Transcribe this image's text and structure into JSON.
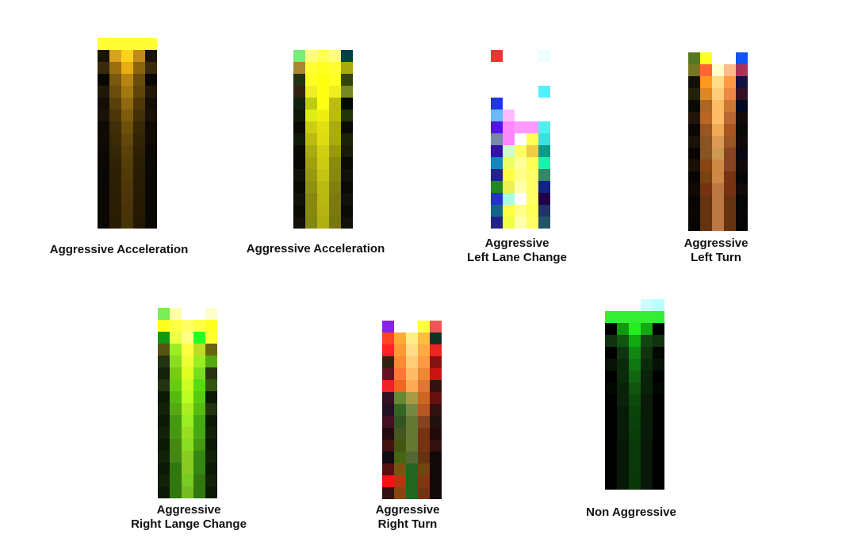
{
  "panels": [
    {
      "id": "aggressive-acceleration-1",
      "caption": [
        "Aggressive Acceleration"
      ],
      "grid": [
        [
          "#ffff33",
          "#ffff33",
          "#ffff33",
          "#ffff33",
          "#ffff33"
        ],
        [
          "#1a1408",
          "#d9a31f",
          "#ffd21a",
          "#c08a1c",
          "#1a1408"
        ],
        [
          "#3a2a0c",
          "#9a6f10",
          "#e8ad10",
          "#8a640e",
          "#3a2a0c"
        ],
        [
          "#0a0804",
          "#7a580c",
          "#b88510",
          "#6a4c0a",
          "#0a0804"
        ],
        [
          "#22180a",
          "#6c4e0c",
          "#a47a10",
          "#5e440a",
          "#22180a"
        ],
        [
          "#140e06",
          "#5a400a",
          "#90680e",
          "#4e3808",
          "#140e06"
        ],
        [
          "#1a1208",
          "#4c3608",
          "#7e5c0c",
          "#423008",
          "#1a1208"
        ],
        [
          "#0e0a04",
          "#402e08",
          "#6e500c",
          "#382806",
          "#0e0a04"
        ],
        [
          "#100c04",
          "#3a2a06",
          "#62480a",
          "#322406",
          "#100c04"
        ],
        [
          "#0c0804",
          "#342606",
          "#5a420a",
          "#2e2006",
          "#0c0804"
        ],
        [
          "#0c0804",
          "#302206",
          "#543e08",
          "#2a1e04",
          "#0c0804"
        ],
        [
          "#0a0804",
          "#2e2004",
          "#503a08",
          "#281c04",
          "#0a0804"
        ],
        [
          "#0a0804",
          "#2c2004",
          "#4c3808",
          "#261c04",
          "#0a0804"
        ],
        [
          "#0a0804",
          "#2a1e04",
          "#4a3608",
          "#241a04",
          "#0a0804"
        ],
        [
          "#0a0804",
          "#2a1e04",
          "#483408",
          "#241a04",
          "#0a0804"
        ],
        [
          "#0a0804",
          "#281c04",
          "#463408",
          "#221804",
          "#0a0804"
        ]
      ]
    },
    {
      "id": "aggressive-acceleration-2",
      "caption": [
        "Aggressive Acceleration"
      ],
      "grid": [
        [
          "#77ee77",
          "#ffff77",
          "#ffff55",
          "#ffff77",
          "#004444"
        ],
        [
          "#aa8833",
          "#ffff33",
          "#ffff22",
          "#ffff33",
          "#aaaa11"
        ],
        [
          "#223311",
          "#ffff22",
          "#ffff11",
          "#ffff22",
          "#334411"
        ],
        [
          "#332211",
          "#eeee22",
          "#ffff11",
          "#eeee22",
          "#778822"
        ],
        [
          "#112211",
          "#bbcc11",
          "#ffff11",
          "#bbbb11",
          "#000808"
        ],
        [
          "#111a08",
          "#ddee11",
          "#eeee11",
          "#bbbb11",
          "#223308"
        ],
        [
          "#0a0a04",
          "#cccc11",
          "#e0e011",
          "#aaaa11",
          "#0a0a04"
        ],
        [
          "#111a08",
          "#bbbb11",
          "#dddd11",
          "#aaaa11",
          "#1a2208"
        ],
        [
          "#0a0a04",
          "#aaaa11",
          "#d0d011",
          "#999911",
          "#1a1a08"
        ],
        [
          "#080804",
          "#a0a011",
          "#cccc11",
          "#8a8a11",
          "#0a0a04"
        ],
        [
          "#111108",
          "#999911",
          "#c4c411",
          "#888811",
          "#111108"
        ],
        [
          "#0a0a04",
          "#909011",
          "#bbbb11",
          "#808011",
          "#0a0a04"
        ],
        [
          "#111108",
          "#888811",
          "#b8b811",
          "#7a7a11",
          "#111108"
        ],
        [
          "#0a0a04",
          "#888811",
          "#b4b411",
          "#7a7a11",
          "#0a0a04"
        ],
        [
          "#111108",
          "#808811",
          "#b0b011",
          "#777711",
          "#111108"
        ]
      ]
    },
    {
      "id": "aggressive-left-lane-change",
      "caption": [
        "Aggressive",
        "Left Lane Change"
      ],
      "grid": [
        [
          "#ee3333",
          "#ffffff",
          "#ffffff",
          "#ffffff",
          "#eeffff"
        ],
        [
          "#ffffff",
          "#ffffff",
          "#ffffff",
          "#ffffff",
          "#ffffff"
        ],
        [
          "#ffffff",
          "#ffffff",
          "#ffffff",
          "#ffffff",
          "#ffffff"
        ],
        [
          "#ffffff",
          "#ffffff",
          "#ffffff",
          "#ffffff",
          "#55eeff"
        ],
        [
          "#2233ee",
          "#ffffff",
          "#ffffff",
          "#ffffff",
          "#ffffff"
        ],
        [
          "#66bbff",
          "#ffbbff",
          "#ffffff",
          "#ffffff",
          "#ffffff"
        ],
        [
          "#5511ee",
          "#ff88ff",
          "#ff99ff",
          "#ff99ff",
          "#55eeee"
        ],
        [
          "#7788aa",
          "#ff88ff",
          "#ffffff",
          "#ffff55",
          "#44dddd"
        ],
        [
          "#3311aa",
          "#ccffcc",
          "#ffff66",
          "#eecc44",
          "#119988"
        ],
        [
          "#1188bb",
          "#eeff66",
          "#ffff99",
          "#ffff55",
          "#22eeaa"
        ],
        [
          "#222288",
          "#ffff44",
          "#ffff88",
          "#ffff66",
          "#338866"
        ],
        [
          "#228822",
          "#eeee55",
          "#ffffaa",
          "#ffff66",
          "#112288"
        ],
        [
          "#2233cc",
          "#aaffdd",
          "#ffffff",
          "#ffff66",
          "#220044"
        ],
        [
          "#116688",
          "#ffff44",
          "#ffff88",
          "#ffff55",
          "#223366"
        ],
        [
          "#222288",
          "#eeff44",
          "#ffffaa",
          "#ffff66",
          "#225566"
        ]
      ]
    },
    {
      "id": "aggressive-left-turn",
      "caption": [
        "Aggressive",
        "Left Turn"
      ],
      "grid": [
        [
          "#557722",
          "#ffff22",
          "#ffffff",
          "#ffffff",
          "#1155ee"
        ],
        [
          "#777722",
          "#ff6633",
          "#ffffcc",
          "#ffbb88",
          "#aa3355"
        ],
        [
          "#111108",
          "#ff9922",
          "#ffdd88",
          "#ff9944",
          "#111144"
        ],
        [
          "#222208",
          "#dd8822",
          "#ffcc77",
          "#ee8844",
          "#331122"
        ],
        [
          "#0a0a04",
          "#aa6622",
          "#ffbb66",
          "#cc7733",
          "#000822"
        ],
        [
          "#221408",
          "#bb6622",
          "#ffbb66",
          "#bb6633",
          "#110a08"
        ],
        [
          "#0a0804",
          "#995522",
          "#eeaa55",
          "#aa5522",
          "#0a0804"
        ],
        [
          "#1a1208",
          "#885522",
          "#dd9955",
          "#995522",
          "#110808"
        ],
        [
          "#080604",
          "#885522",
          "#cc9955",
          "#884422",
          "#080611"
        ],
        [
          "#1a1008",
          "#884411",
          "#cc8844",
          "#884422",
          "#110808"
        ],
        [
          "#080604",
          "#774411",
          "#cc8844",
          "#773311",
          "#080604"
        ],
        [
          "#110a04",
          "#773311",
          "#bb7744",
          "#773311",
          "#110a08"
        ],
        [
          "#080604",
          "#663311",
          "#bb7744",
          "#663311",
          "#080604"
        ],
        [
          "#0a0604",
          "#663311",
          "#bb7744",
          "#663311",
          "#0a0608"
        ],
        [
          "#080604",
          "#663311",
          "#bb7744",
          "#663311",
          "#080604"
        ]
      ]
    },
    {
      "id": "aggressive-right-lane-change",
      "caption": [
        "Aggressive",
        "Right Lange Change"
      ],
      "grid": [
        [
          "#77ee55",
          "#ffffaa",
          "#ffffff",
          "#ffffff",
          "#ffffcc"
        ],
        [
          "#ffff22",
          "#ffff44",
          "#ffff66",
          "#ffff44",
          "#ffff22"
        ],
        [
          "#119911",
          "#eeff44",
          "#ffff88",
          "#22ff22",
          "#ffff33"
        ],
        [
          "#555511",
          "#99ee22",
          "#ffff44",
          "#bbdd22",
          "#666611"
        ],
        [
          "#223311",
          "#88dd22",
          "#eeff33",
          "#99ee22",
          "#55aa11"
        ],
        [
          "#112208",
          "#77cc11",
          "#ddff22",
          "#77dd22",
          "#2a3311"
        ],
        [
          "#223311",
          "#66cc11",
          "#ccff22",
          "#55dd11",
          "#335511"
        ],
        [
          "#0a1a04",
          "#55bb11",
          "#bbff22",
          "#55cc11",
          "#0a1a04"
        ],
        [
          "#112208",
          "#55aa11",
          "#aaee22",
          "#55bb11",
          "#223311"
        ],
        [
          "#0a1a04",
          "#449911",
          "#99ee22",
          "#44aa11",
          "#0a1a04"
        ],
        [
          "#112208",
          "#449911",
          "#99dd22",
          "#44aa11",
          "#112208"
        ],
        [
          "#0a1a04",
          "#448811",
          "#88dd22",
          "#449911",
          "#0a1a04"
        ],
        [
          "#112208",
          "#448811",
          "#88cc22",
          "#338811",
          "#112208"
        ],
        [
          "#0a1a04",
          "#337711",
          "#88cc22",
          "#338811",
          "#0a1a04"
        ],
        [
          "#112208",
          "#337711",
          "#77cc22",
          "#337711",
          "#112208"
        ],
        [
          "#0a1a04",
          "#337711",
          "#77bb22",
          "#337711",
          "#0a1a04"
        ]
      ]
    },
    {
      "id": "aggressive-right-turn",
      "caption": [
        "Aggressive",
        "Right Turn"
      ],
      "grid": [
        [
          "#8822ee",
          "#ffffff",
          "#ffffff",
          "#ffff44",
          "#ee5555"
        ],
        [
          "#ff4422",
          "#ffaa33",
          "#ffee88",
          "#ffbb44",
          "#113322"
        ],
        [
          "#ff2222",
          "#ff9933",
          "#ffdd88",
          "#ffaa44",
          "#ee2222"
        ],
        [
          "#332211",
          "#ff8833",
          "#ffcc77",
          "#ff9944",
          "#881111"
        ],
        [
          "#661122",
          "#ff7733",
          "#ffbb66",
          "#ee8833",
          "#cc1111"
        ],
        [
          "#ee2222",
          "#ee6622",
          "#ffaa55",
          "#dd7733",
          "#331111"
        ],
        [
          "#331122",
          "#668833",
          "#aa9944",
          "#cc6622",
          "#661111"
        ],
        [
          "#221122",
          "#336622",
          "#778844",
          "#bb5522",
          "#331111"
        ],
        [
          "#441122",
          "#335522",
          "#667733",
          "#884422",
          "#221111"
        ],
        [
          "#220a11",
          "#445522",
          "#667733",
          "#773311",
          "#220a0a"
        ],
        [
          "#441111",
          "#445511",
          "#667733",
          "#773311",
          "#331111"
        ],
        [
          "#110a11",
          "#446611",
          "#556633",
          "#663311",
          "#110808"
        ],
        [
          "#551111",
          "#775511",
          "#226622",
          "#774411",
          "#110808"
        ],
        [
          "#ff1111",
          "#bb3311",
          "#226622",
          "#883311",
          "#110808"
        ],
        [
          "#331111",
          "#884411",
          "#226622",
          "#773311",
          "#110808"
        ]
      ]
    },
    {
      "id": "non-aggressive",
      "caption": [
        "Non Aggressive"
      ],
      "grid": [
        [
          "#ffffff",
          "#ffffff",
          "#ffffff",
          "#ccffff",
          "#bbffff"
        ],
        [
          "#33ee33",
          "#33ee33",
          "#33ee33",
          "#33ee33",
          "#33ee33"
        ],
        [
          "#000000",
          "#119911",
          "#22ee22",
          "#11aa11",
          "#000000"
        ],
        [
          "#113311",
          "#115511",
          "#11aa11",
          "#114411",
          "#113311"
        ],
        [
          "#000000",
          "#113311",
          "#118811",
          "#113311",
          "#000800"
        ],
        [
          "#081108",
          "#0a2a0a",
          "#117711",
          "#0a2a0a",
          "#081108"
        ],
        [
          "#000000",
          "#0a2a0a",
          "#116611",
          "#0a220a",
          "#000000"
        ],
        [
          "#000800",
          "#0a220a",
          "#115511",
          "#0a220a",
          "#000800"
        ],
        [
          "#000000",
          "#0a220a",
          "#0a4a0a",
          "#0a1a0a",
          "#000000"
        ],
        [
          "#000000",
          "#081a08",
          "#0a440a",
          "#081a08",
          "#000000"
        ],
        [
          "#000000",
          "#081a08",
          "#0a400a",
          "#081a08",
          "#000000"
        ],
        [
          "#000000",
          "#081a08",
          "#0a3c0a",
          "#081a08",
          "#000000"
        ],
        [
          "#000000",
          "#081808",
          "#0a3a0a",
          "#081808",
          "#000000"
        ],
        [
          "#000000",
          "#081808",
          "#0a3a0a",
          "#081808",
          "#000000"
        ],
        [
          "#000000",
          "#081808",
          "#0a380a",
          "#081808",
          "#000000"
        ],
        [
          "#000000",
          "#081808",
          "#0a380a",
          "#081808",
          "#000000"
        ]
      ]
    }
  ]
}
